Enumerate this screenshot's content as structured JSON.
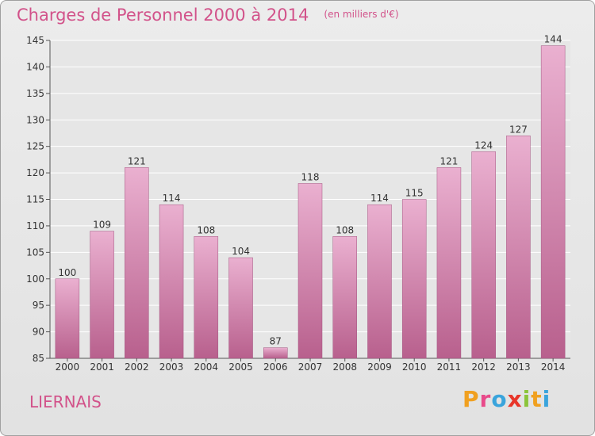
{
  "header": {
    "title": "Charges de Personnel 2000 à 2014",
    "subtitle": "(en milliers d'€)"
  },
  "footer": {
    "town": "LIERNAIS",
    "logo": [
      "P",
      "r",
      "o",
      "x",
      "i",
      "t",
      "i"
    ]
  },
  "colors": {
    "bar_top": "#eab0d0",
    "bar_bottom": "#b8608d",
    "title": "#d2528a",
    "logo": [
      "#f0a020",
      "#e84a8a",
      "#3aa4dc",
      "#e8362a",
      "#8bc43a",
      "#f0a020",
      "#3aa4dc"
    ]
  },
  "chart_data": {
    "type": "bar",
    "title": "Charges de Personnel 2000 à 2014",
    "categories": [
      "2000",
      "2001",
      "2002",
      "2003",
      "2004",
      "2005",
      "2006",
      "2007",
      "2008",
      "2009",
      "2010",
      "2011",
      "2012",
      "2013",
      "2014"
    ],
    "values": [
      100,
      109,
      121,
      114,
      108,
      104,
      87,
      118,
      108,
      114,
      115,
      121,
      124,
      127,
      144
    ],
    "ylim": [
      85,
      145
    ],
    "yticks": [
      85,
      90,
      95,
      100,
      105,
      110,
      115,
      120,
      125,
      130,
      135,
      140,
      145
    ],
    "grid": true
  }
}
